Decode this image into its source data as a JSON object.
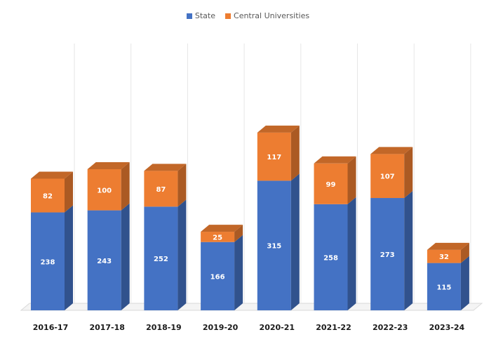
{
  "chart_data": {
    "type": "bar",
    "stacked": true,
    "three_d": true,
    "categories": [
      "2016-17",
      "2017-18",
      "2018-19",
      "2019-20",
      "2020-21",
      "2021-22",
      "2022-23",
      "2023-24"
    ],
    "series": [
      {
        "name": "State",
        "color": "#4472C4",
        "values": [
          238,
          243,
          252,
          166,
          315,
          258,
          273,
          115
        ]
      },
      {
        "name": "Central Universities",
        "color": "#ED7D31",
        "values": [
          82,
          100,
          87,
          25,
          117,
          99,
          107,
          32
        ]
      }
    ],
    "legend_position": "top",
    "grid": false,
    "data_labels": true
  }
}
